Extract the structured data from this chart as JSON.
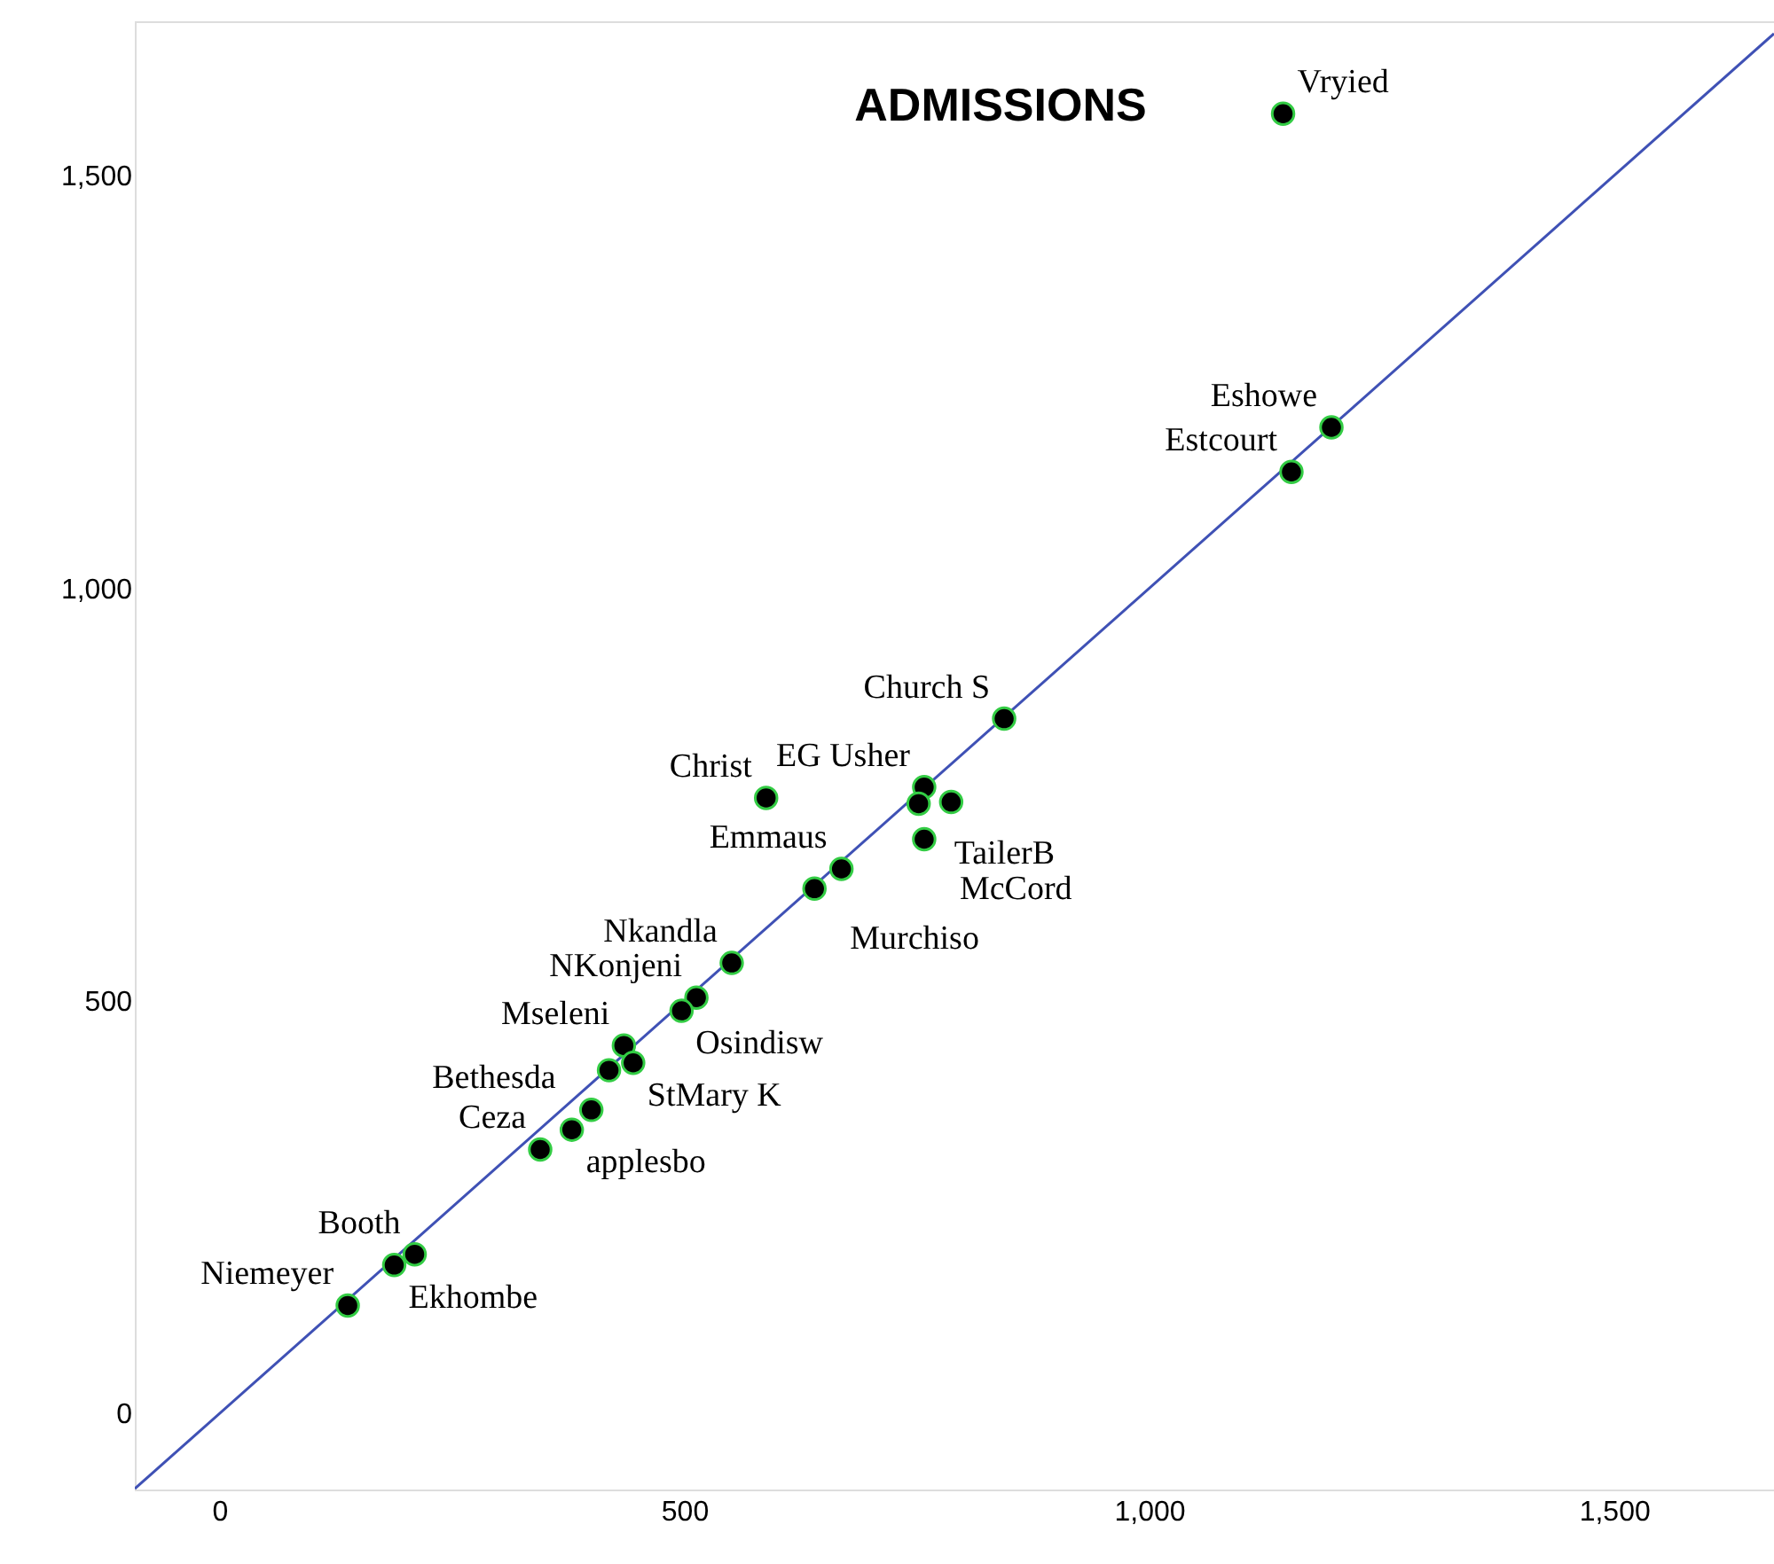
{
  "chart_data": {
    "type": "scatter",
    "title": "ADMISSIONS",
    "xlim": [
      -91,
      1672
    ],
    "ylim": [
      -92,
      1687
    ],
    "xticks": [
      0,
      500,
      {
        "value": 1000,
        "label": "1,000"
      },
      {
        "value": 1500,
        "label": "1,500"
      }
    ],
    "yticks": [
      0,
      500,
      {
        "value": 1000,
        "label": "1,000"
      },
      {
        "value": 1500,
        "label": "1,500"
      }
    ],
    "grid": false,
    "marker": "circle",
    "series": [
      {
        "type": "line",
        "color": "#3f51b5",
        "x": [
          -91,
          1672
        ],
        "values": [
          -91,
          1672
        ],
        "marker": "none",
        "line_style": "solid"
      },
      {
        "type": "scatter",
        "color": "#000000",
        "x": [
          1144,
          1196,
          1153,
          844,
          758,
          752,
          787,
          758,
          588,
          669,
          640,
          551,
          513,
          497,
          435,
          445,
          419,
          400,
          379,
          345,
          210,
          188,
          138
        ],
        "values": [
          1575,
          1195,
          1141,
          842,
          759,
          739,
          741,
          696,
          746,
          660,
          636,
          546,
          504,
          488,
          446,
          425,
          416,
          368,
          344,
          320,
          193,
          180,
          131
        ],
        "value_labels": [
          "Vryied",
          "Eshowe",
          "Estcourt",
          "Church S",
          "EG Usher",
          "TailerB",
          null,
          "McCord",
          "Christ",
          "Emmaus",
          "Murchiso",
          "Nkandla",
          "NKonjeni",
          "Osindisw",
          "Mseleni",
          "StMary K",
          "Bethesda",
          null,
          "applesbo",
          "Ceza",
          "Booth",
          "Ekhombe",
          "Niemeyer"
        ]
      }
    ]
  }
}
